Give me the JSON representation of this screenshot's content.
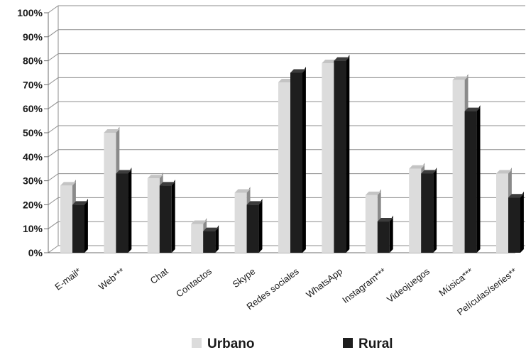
{
  "chart_data": {
    "type": "bar",
    "categories": [
      "E-mail*",
      "Web***",
      "Chat",
      "Contactos",
      "Skype",
      "Redes sociales",
      "WhatsApp",
      "Instagram***",
      "Videojuegos",
      "Música***",
      "Películas/series**"
    ],
    "series": [
      {
        "name": "Urbano",
        "values": [
          28,
          50,
          31,
          12,
          25,
          71,
          79,
          24,
          35,
          72,
          33
        ],
        "color": "#dcdcdc",
        "side": "#8a8a8a",
        "top": "#c4c4c4"
      },
      {
        "name": "Rural",
        "values": [
          20,
          33,
          28,
          9,
          20,
          75,
          80,
          13,
          33,
          59,
          23
        ],
        "color": "#1e1e1e",
        "side": "#000000",
        "top": "#3c3c3c"
      }
    ],
    "yticks": [
      "0%",
      "10%",
      "20%",
      "30%",
      "40%",
      "50%",
      "60%",
      "70%",
      "80%",
      "90%",
      "100%"
    ],
    "ylim": [
      0,
      100
    ],
    "grid": true,
    "legend_position": "bottom",
    "title": "",
    "xlabel": "",
    "ylabel": ""
  }
}
